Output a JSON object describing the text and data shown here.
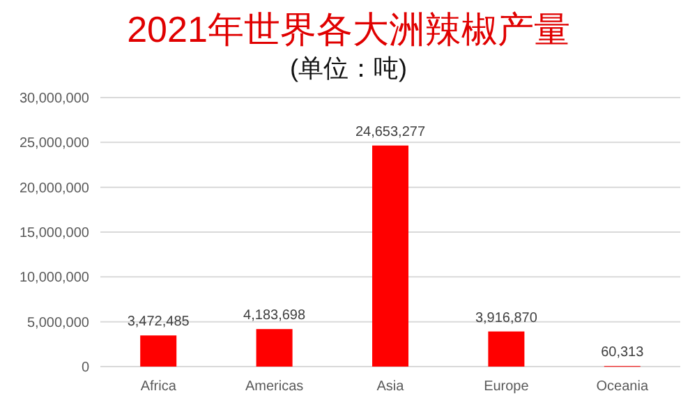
{
  "chart_data": {
    "type": "bar",
    "title": "2021年世界各大洲辣椒产量",
    "subtitle": "(单位：吨)",
    "categories": [
      "Africa",
      "Americas",
      "Asia",
      "Europe",
      "Oceania"
    ],
    "values": [
      3472485,
      4183698,
      24653277,
      3916870,
      60313
    ],
    "value_labels": [
      "3,472,485",
      "4,183,698",
      "24,653,277",
      "3,916,870",
      "60,313"
    ],
    "color": "#ff0000",
    "ylim": [
      0,
      30000000
    ],
    "yticks": [
      {
        "value": 0,
        "label": "0"
      },
      {
        "value": 5000000,
        "label": "5,000,000"
      },
      {
        "value": 10000000,
        "label": "10,000,000"
      },
      {
        "value": 15000000,
        "label": "15,000,000"
      },
      {
        "value": 20000000,
        "label": "20,000,000"
      },
      {
        "value": 25000000,
        "label": "25,000,000"
      },
      {
        "value": 30000000,
        "label": "30,000,000"
      }
    ],
    "grid": "y"
  }
}
